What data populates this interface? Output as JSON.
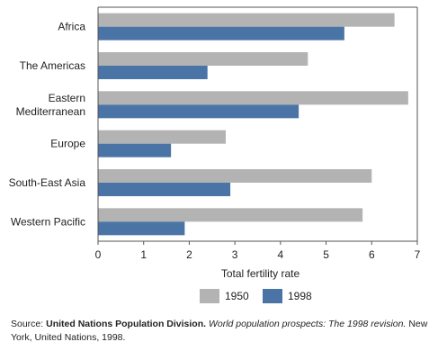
{
  "chart_data": {
    "type": "bar",
    "orientation": "horizontal",
    "categories": [
      [
        "Africa"
      ],
      [
        "The Americas"
      ],
      [
        "Eastern",
        "Mediterranean"
      ],
      [
        "Europe"
      ],
      [
        "South-East Asia"
      ],
      [
        "Western Pacific"
      ]
    ],
    "series": [
      {
        "name": "1950",
        "color": "#b3b3b3",
        "values": [
          6.5,
          4.6,
          6.8,
          2.8,
          6.0,
          5.8
        ]
      },
      {
        "name": "1998",
        "color": "#4a74a6",
        "values": [
          5.4,
          2.4,
          4.4,
          1.6,
          2.9,
          1.9
        ]
      }
    ],
    "xlabel": "Total fertility rate",
    "xlim": [
      0,
      7
    ],
    "xticks": [
      0,
      1,
      2,
      3,
      4,
      5,
      6,
      7
    ],
    "grid": false,
    "legend_position": "bottom"
  },
  "source": {
    "label": "Source:",
    "org": "United Nations Population Division.",
    "publication": "World population prospects: The 1998 revision.",
    "rest": "New York, United Nations, 1998."
  }
}
